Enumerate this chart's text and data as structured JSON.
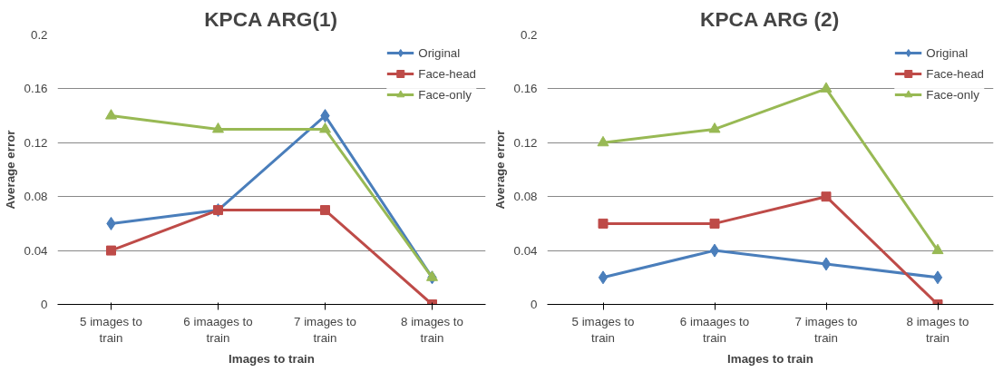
{
  "chart_data": [
    {
      "type": "line",
      "title": "KPCA ARG(1)",
      "xlabel": "Images to train",
      "ylabel": "Average error",
      "categories": [
        "5 images to train",
        "6 imaages to train",
        "7 images to train",
        "8 images to train"
      ],
      "ylim": [
        0,
        0.2
      ],
      "yticks": [
        0,
        0.04,
        0.08,
        0.12,
        0.16,
        0.2
      ],
      "grid": "y",
      "legend": "top right",
      "series": [
        {
          "name": "Original",
          "color": "#4a7ebb",
          "marker": "diamond",
          "values": [
            0.06,
            0.07,
            0.14,
            0.02
          ]
        },
        {
          "name": "Face-head",
          "color": "#be4b48",
          "marker": "square",
          "values": [
            0.04,
            0.07,
            0.07,
            0.0
          ]
        },
        {
          "name": "Face-only",
          "color": "#98b954",
          "marker": "triangle",
          "values": [
            0.14,
            0.13,
            0.13,
            0.02
          ]
        }
      ]
    },
    {
      "type": "line",
      "title": "KPCA ARG (2)",
      "xlabel": "Images to train",
      "ylabel": "Average error",
      "categories": [
        "5 images to train",
        "6 imaages to train",
        "7 images to train",
        "8 images to train"
      ],
      "ylim": [
        0,
        0.2
      ],
      "yticks": [
        0,
        0.04,
        0.08,
        0.12,
        0.16,
        0.2
      ],
      "grid": "y",
      "legend": "top right",
      "series": [
        {
          "name": "Original",
          "color": "#4a7ebb",
          "marker": "diamond",
          "values": [
            0.02,
            0.04,
            0.03,
            0.02
          ]
        },
        {
          "name": "Face-head",
          "color": "#be4b48",
          "marker": "square",
          "values": [
            0.06,
            0.06,
            0.08,
            0.0
          ]
        },
        {
          "name": "Face-only",
          "color": "#98b954",
          "marker": "triangle",
          "values": [
            0.12,
            0.13,
            0.16,
            0.04
          ]
        }
      ]
    }
  ]
}
